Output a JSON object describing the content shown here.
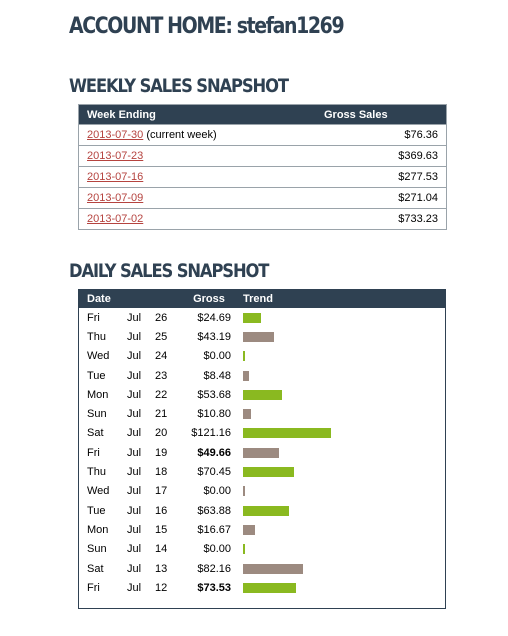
{
  "header": {
    "title": "ACCOUNT HOME: stefan1269"
  },
  "weekly": {
    "title": "WEEKLY SALES SNAPSHOT",
    "columns": [
      "Week Ending",
      "Gross Sales"
    ],
    "rows": [
      {
        "date": "2013-07-30",
        "note": " (current week)",
        "gross": "$76.36"
      },
      {
        "date": "2013-07-23",
        "note": "",
        "gross": "$369.63"
      },
      {
        "date": "2013-07-16",
        "note": "",
        "gross": "$277.53"
      },
      {
        "date": "2013-07-09",
        "note": "",
        "gross": "$271.04"
      },
      {
        "date": "2013-07-02",
        "note": "",
        "gross": "$733.23"
      }
    ]
  },
  "daily": {
    "title": "DAILY SALES SNAPSHOT",
    "columns": [
      "Date",
      "Gross",
      "Trend"
    ],
    "colors": {
      "up": "#8ab920",
      "down": "#9c8a80"
    },
    "rows": [
      {
        "day": "Fri",
        "month": "Jul",
        "date": "26",
        "gross": "$24.69",
        "value": 24.69,
        "trend": "up",
        "bold": false
      },
      {
        "day": "Thu",
        "month": "Jul",
        "date": "25",
        "gross": "$43.19",
        "value": 43.19,
        "trend": "down",
        "bold": false
      },
      {
        "day": "Wed",
        "month": "Jul",
        "date": "24",
        "gross": "$0.00",
        "value": 0,
        "trend": "up",
        "bold": false
      },
      {
        "day": "Tue",
        "month": "Jul",
        "date": "23",
        "gross": "$8.48",
        "value": 8.48,
        "trend": "down",
        "bold": false
      },
      {
        "day": "Mon",
        "month": "Jul",
        "date": "22",
        "gross": "$53.68",
        "value": 53.68,
        "trend": "up",
        "bold": false
      },
      {
        "day": "Sun",
        "month": "Jul",
        "date": "21",
        "gross": "$10.80",
        "value": 10.8,
        "trend": "down",
        "bold": false
      },
      {
        "day": "Sat",
        "month": "Jul",
        "date": "20",
        "gross": "$121.16",
        "value": 121.16,
        "trend": "up",
        "bold": false
      },
      {
        "day": "Fri",
        "month": "Jul",
        "date": "19",
        "gross": "$49.66",
        "value": 49.66,
        "trend": "down",
        "bold": true
      },
      {
        "day": "Thu",
        "month": "Jul",
        "date": "18",
        "gross": "$70.45",
        "value": 70.45,
        "trend": "up",
        "bold": false
      },
      {
        "day": "Wed",
        "month": "Jul",
        "date": "17",
        "gross": "$0.00",
        "value": 0,
        "trend": "down",
        "bold": false
      },
      {
        "day": "Tue",
        "month": "Jul",
        "date": "16",
        "gross": "$63.88",
        "value": 63.88,
        "trend": "up",
        "bold": false
      },
      {
        "day": "Mon",
        "month": "Jul",
        "date": "15",
        "gross": "$16.67",
        "value": 16.67,
        "trend": "down",
        "bold": false
      },
      {
        "day": "Sun",
        "month": "Jul",
        "date": "14",
        "gross": "$0.00",
        "value": 0,
        "trend": "up",
        "bold": false
      },
      {
        "day": "Sat",
        "month": "Jul",
        "date": "13",
        "gross": "$82.16",
        "value": 82.16,
        "trend": "down",
        "bold": false
      },
      {
        "day": "Fri",
        "month": "Jul",
        "date": "12",
        "gross": "$73.53",
        "value": 73.53,
        "trend": "up",
        "bold": true
      }
    ]
  }
}
